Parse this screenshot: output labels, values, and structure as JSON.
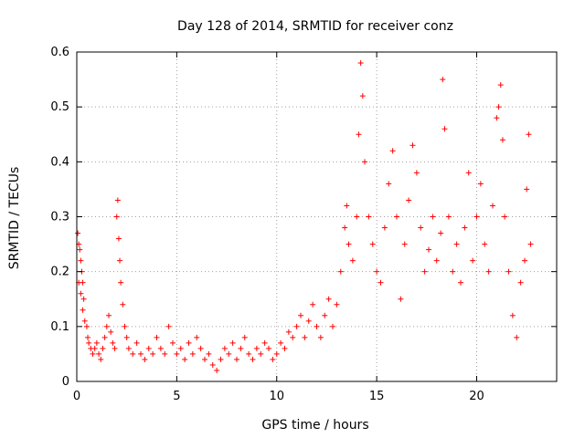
{
  "chart_data": {
    "type": "scatter",
    "title": "Day 128 of 2014, SRMTID for receiver conz",
    "xlabel": "GPS time / hours",
    "ylabel": "SRMTID / TECUs",
    "xlim": [
      0,
      24
    ],
    "ylim": [
      0,
      0.6
    ],
    "xticks": [
      0,
      5,
      10,
      15,
      20
    ],
    "xtick_labels": [
      "0",
      "5",
      "10",
      "15",
      "20"
    ],
    "yticks": [
      0,
      0.1,
      0.2,
      0.3,
      0.4,
      0.5,
      0.6
    ],
    "ytick_labels": [
      "0",
      "0.1",
      "0.2",
      "0.3",
      "0.4",
      "0.5",
      "0.6"
    ],
    "grid": true,
    "marker": "+",
    "color": "#ff0000",
    "series": [
      {
        "name": "SRMTID",
        "points": [
          [
            0.05,
            0.27
          ],
          [
            0.1,
            0.25
          ],
          [
            0.15,
            0.24
          ],
          [
            0.2,
            0.22
          ],
          [
            0.25,
            0.2
          ],
          [
            0.3,
            0.18
          ],
          [
            0.35,
            0.15
          ],
          [
            0.1,
            0.18
          ],
          [
            0.2,
            0.16
          ],
          [
            0.3,
            0.13
          ],
          [
            0.4,
            0.11
          ],
          [
            0.5,
            0.1
          ],
          [
            0.55,
            0.08
          ],
          [
            0.6,
            0.07
          ],
          [
            0.7,
            0.06
          ],
          [
            0.8,
            0.05
          ],
          [
            0.9,
            0.06
          ],
          [
            1.0,
            0.07
          ],
          [
            1.1,
            0.05
          ],
          [
            1.2,
            0.04
          ],
          [
            1.3,
            0.06
          ],
          [
            1.4,
            0.08
          ],
          [
            1.5,
            0.1
          ],
          [
            1.6,
            0.12
          ],
          [
            1.7,
            0.09
          ],
          [
            1.8,
            0.07
          ],
          [
            1.9,
            0.06
          ],
          [
            2.0,
            0.3
          ],
          [
            2.05,
            0.33
          ],
          [
            2.1,
            0.26
          ],
          [
            2.15,
            0.22
          ],
          [
            2.2,
            0.18
          ],
          [
            2.3,
            0.14
          ],
          [
            2.4,
            0.1
          ],
          [
            2.5,
            0.08
          ],
          [
            2.6,
            0.06
          ],
          [
            2.8,
            0.05
          ],
          [
            3.0,
            0.07
          ],
          [
            3.2,
            0.05
          ],
          [
            3.4,
            0.04
          ],
          [
            3.6,
            0.06
          ],
          [
            3.8,
            0.05
          ],
          [
            4.0,
            0.08
          ],
          [
            4.2,
            0.06
          ],
          [
            4.4,
            0.05
          ],
          [
            4.6,
            0.1
          ],
          [
            4.8,
            0.07
          ],
          [
            5.0,
            0.05
          ],
          [
            5.2,
            0.06
          ],
          [
            5.4,
            0.04
          ],
          [
            5.6,
            0.07
          ],
          [
            5.8,
            0.05
          ],
          [
            6.0,
            0.08
          ],
          [
            6.2,
            0.06
          ],
          [
            6.4,
            0.04
          ],
          [
            6.6,
            0.05
          ],
          [
            6.8,
            0.03
          ],
          [
            7.0,
            0.02
          ],
          [
            7.2,
            0.04
          ],
          [
            7.4,
            0.06
          ],
          [
            7.6,
            0.05
          ],
          [
            7.8,
            0.07
          ],
          [
            8.0,
            0.04
          ],
          [
            8.2,
            0.06
          ],
          [
            8.4,
            0.08
          ],
          [
            8.6,
            0.05
          ],
          [
            8.8,
            0.04
          ],
          [
            9.0,
            0.06
          ],
          [
            9.2,
            0.05
          ],
          [
            9.4,
            0.07
          ],
          [
            9.6,
            0.06
          ],
          [
            9.8,
            0.04
          ],
          [
            10.0,
            0.05
          ],
          [
            10.2,
            0.07
          ],
          [
            10.4,
            0.06
          ],
          [
            10.6,
            0.09
          ],
          [
            10.8,
            0.08
          ],
          [
            11.0,
            0.1
          ],
          [
            11.2,
            0.12
          ],
          [
            11.4,
            0.08
          ],
          [
            11.6,
            0.11
          ],
          [
            11.8,
            0.14
          ],
          [
            12.0,
            0.1
          ],
          [
            12.2,
            0.08
          ],
          [
            12.4,
            0.12
          ],
          [
            12.6,
            0.15
          ],
          [
            12.8,
            0.1
          ],
          [
            13.0,
            0.14
          ],
          [
            13.2,
            0.2
          ],
          [
            13.4,
            0.28
          ],
          [
            13.5,
            0.32
          ],
          [
            13.6,
            0.25
          ],
          [
            13.8,
            0.22
          ],
          [
            14.0,
            0.3
          ],
          [
            14.1,
            0.45
          ],
          [
            14.2,
            0.58
          ],
          [
            14.3,
            0.52
          ],
          [
            14.4,
            0.4
          ],
          [
            14.6,
            0.3
          ],
          [
            14.8,
            0.25
          ],
          [
            15.0,
            0.2
          ],
          [
            15.2,
            0.18
          ],
          [
            15.4,
            0.28
          ],
          [
            15.6,
            0.36
          ],
          [
            15.8,
            0.42
          ],
          [
            16.0,
            0.3
          ],
          [
            16.2,
            0.15
          ],
          [
            16.4,
            0.25
          ],
          [
            16.6,
            0.33
          ],
          [
            16.8,
            0.43
          ],
          [
            17.0,
            0.38
          ],
          [
            17.2,
            0.28
          ],
          [
            17.4,
            0.2
          ],
          [
            17.6,
            0.24
          ],
          [
            17.8,
            0.3
          ],
          [
            18.0,
            0.22
          ],
          [
            18.2,
            0.27
          ],
          [
            18.3,
            0.55
          ],
          [
            18.4,
            0.46
          ],
          [
            18.6,
            0.3
          ],
          [
            18.8,
            0.2
          ],
          [
            19.0,
            0.25
          ],
          [
            19.2,
            0.18
          ],
          [
            19.4,
            0.28
          ],
          [
            19.6,
            0.38
          ],
          [
            19.8,
            0.22
          ],
          [
            20.0,
            0.3
          ],
          [
            20.2,
            0.36
          ],
          [
            20.4,
            0.25
          ],
          [
            20.6,
            0.2
          ],
          [
            20.8,
            0.32
          ],
          [
            21.0,
            0.48
          ],
          [
            21.1,
            0.5
          ],
          [
            21.2,
            0.54
          ],
          [
            21.3,
            0.44
          ],
          [
            21.4,
            0.3
          ],
          [
            21.6,
            0.2
          ],
          [
            21.8,
            0.12
          ],
          [
            22.0,
            0.08
          ],
          [
            22.2,
            0.18
          ],
          [
            22.4,
            0.22
          ],
          [
            22.5,
            0.35
          ],
          [
            22.6,
            0.45
          ],
          [
            22.7,
            0.25
          ]
        ]
      }
    ]
  }
}
